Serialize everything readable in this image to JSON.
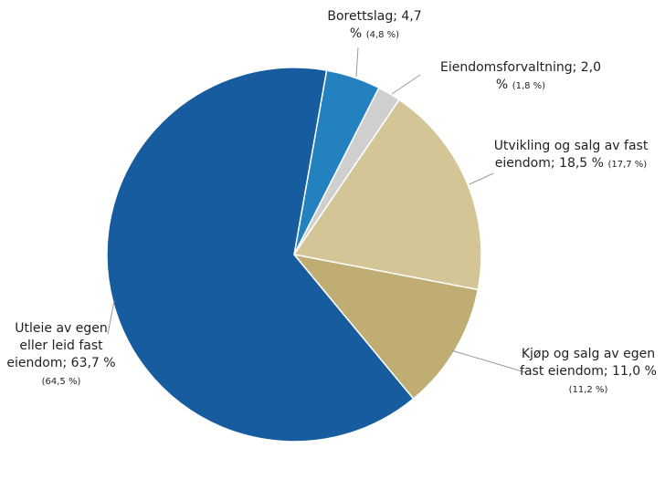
{
  "chart_data": {
    "type": "pie",
    "categories": [
      "Borettslag;",
      "Eiendomsforvaltning;",
      "Utvikling og salg av fast eiendom;",
      "Kjøp og salg av egen fast eiendom;",
      "Utleie av egen eller leid fast eiendom;"
    ],
    "values": [
      4.7,
      2.0,
      18.5,
      11.0,
      63.7
    ],
    "value_labels": [
      "4,7 %",
      "2,0 %",
      "18,5 %",
      "11,0 %",
      "63,7 %"
    ],
    "secondary_labels": [
      "(4,8 %)",
      "(1,8 %)",
      "(17,7 %)",
      "(11,2 %)",
      "(64,5 %)"
    ],
    "colors": [
      "#2381c0",
      "#cfcfcf",
      "#d3c596",
      "#bfad74",
      "#165c9f"
    ]
  }
}
